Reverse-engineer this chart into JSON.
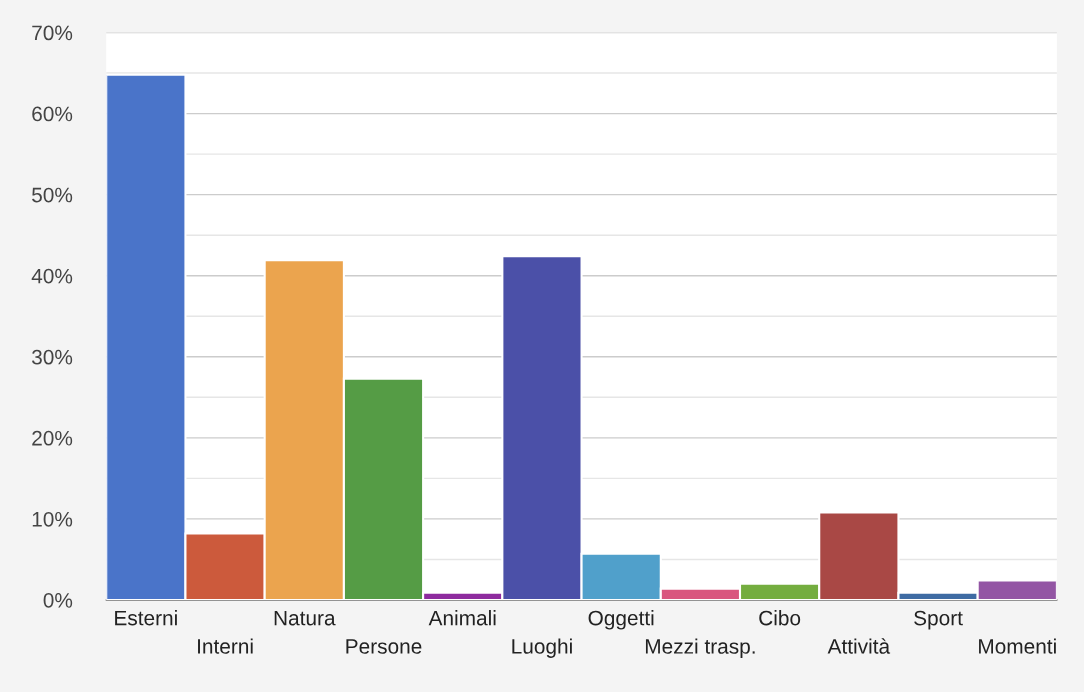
{
  "chart_data": {
    "type": "bar",
    "categories": [
      "Esterni",
      "Interni",
      "Natura",
      "Persone",
      "Animali",
      "Luoghi",
      "Oggetti",
      "Mezzi trasp.",
      "Cibo",
      "Attività",
      "Sport",
      "Momenti"
    ],
    "values": [
      64.8,
      8.2,
      41.9,
      27.3,
      0.9,
      42.4,
      5.7,
      1.4,
      2.0,
      10.8,
      0.9,
      2.4
    ],
    "colors": [
      "#4a74c9",
      "#cc5a3c",
      "#eba44e",
      "#559c45",
      "#8e2b9e",
      "#4b50a8",
      "#50a0cb",
      "#d9567e",
      "#74ad3f",
      "#a94845",
      "#3e6ba3",
      "#9355a4"
    ],
    "ylim": [
      0,
      70
    ],
    "yticks": [
      {
        "value": 0,
        "label": "0%"
      },
      {
        "value": 5,
        "label": null
      },
      {
        "value": 10,
        "label": "10%"
      },
      {
        "value": 15,
        "label": null
      },
      {
        "value": 20,
        "label": "20%"
      },
      {
        "value": 25,
        "label": null
      },
      {
        "value": 30,
        "label": "30%"
      },
      {
        "value": 35,
        "label": null
      },
      {
        "value": 40,
        "label": "40%"
      },
      {
        "value": 45,
        "label": null
      },
      {
        "value": 50,
        "label": "50%"
      },
      {
        "value": 55,
        "label": null
      },
      {
        "value": 60,
        "label": "60%"
      },
      {
        "value": 65,
        "label": null
      },
      {
        "value": 70,
        "label": "70%"
      }
    ],
    "grid": "y",
    "legend": false
  }
}
